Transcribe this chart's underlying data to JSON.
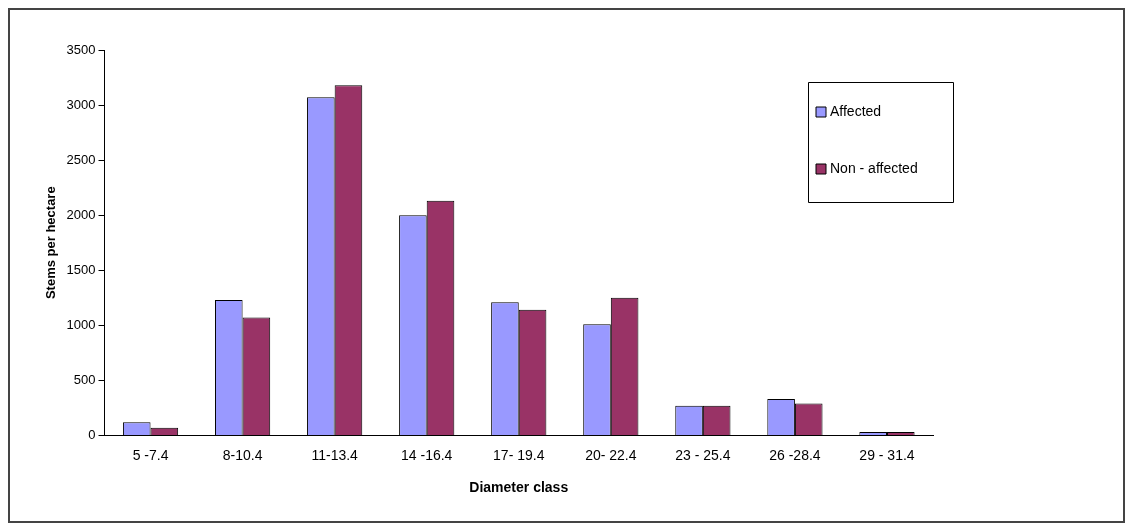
{
  "chart_data": {
    "type": "bar",
    "xlabel": "Diameter class",
    "ylabel": "Stems per hectare",
    "categories": [
      "5 -7.4",
      "8-10.4",
      "11-13.4",
      "14 -16.4",
      "17- 19.4",
      "20- 22.4",
      "23 - 25.4",
      "26 -28.4",
      "29 - 31.4"
    ],
    "series": [
      {
        "name": "Affected",
        "color": "#9999ff",
        "values": [
          120,
          1230,
          3070,
          2000,
          1210,
          1010,
          270,
          330,
          30
        ]
      },
      {
        "name": "Non - affected",
        "color": "#993366",
        "values": [
          70,
          1070,
          3180,
          2130,
          1140,
          1250,
          270,
          290,
          30
        ]
      }
    ],
    "ylim": [
      0,
      3500
    ],
    "yticks": [
      0,
      500,
      1000,
      1500,
      2000,
      2500,
      3000,
      3500
    ],
    "grid": false,
    "legend": "top right"
  }
}
